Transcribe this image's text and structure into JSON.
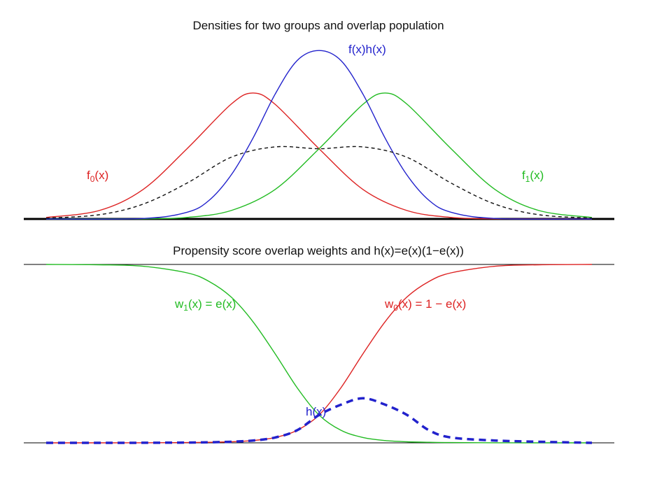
{
  "chart_data": [
    {
      "type": "line",
      "title": "Densities for two groups and overlap population",
      "xlabel": "",
      "ylabel": "",
      "x_range": [
        -3.1,
        3.1
      ],
      "y_range": [
        0,
        1.3
      ],
      "grid": false,
      "axes_visible": false,
      "baseline": true,
      "series": [
        {
          "key": "f0",
          "label_main": "f",
          "label_sub": "0",
          "label_tail": "(x)",
          "color": "#dd2222",
          "style": "solid",
          "x": [
            -3.1,
            -2.5,
            -2.0,
            -1.5,
            -1.0,
            -0.75,
            -0.5,
            0.0,
            0.5,
            1.0,
            1.5,
            2.0,
            2.5,
            3.1
          ],
          "y": [
            0.009,
            0.05,
            0.175,
            0.417,
            0.681,
            0.748,
            0.681,
            0.417,
            0.175,
            0.05,
            0.009,
            0.001,
            0.0001,
            0.0
          ]
        },
        {
          "key": "f1",
          "label_main": "f",
          "label_sub": "1",
          "label_tail": "(x)",
          "color": "#22bb22",
          "style": "solid",
          "x": [
            -3.1,
            -2.5,
            -2.0,
            -1.5,
            -1.0,
            -0.5,
            0.0,
            0.5,
            0.75,
            1.0,
            1.5,
            2.0,
            2.5,
            3.1
          ],
          "y": [
            0.0,
            0.0001,
            0.001,
            0.009,
            0.05,
            0.175,
            0.417,
            0.681,
            0.748,
            0.681,
            0.417,
            0.175,
            0.05,
            0.009
          ]
        },
        {
          "key": "fh",
          "label_main": "f(x)h(x)",
          "label_sub": "",
          "label_tail": "",
          "color": "#2222cc",
          "style": "solid",
          "x": [
            -3.1,
            -2.0,
            -1.5,
            -1.25,
            -1.0,
            -0.75,
            -0.5,
            -0.25,
            0.0,
            0.25,
            0.5,
            0.75,
            1.0,
            1.25,
            1.5,
            2.0,
            3.1
          ],
          "y": [
            0.0,
            0.003,
            0.04,
            0.11,
            0.26,
            0.48,
            0.74,
            0.94,
            1.0,
            0.94,
            0.74,
            0.48,
            0.26,
            0.11,
            0.04,
            0.003,
            0.0
          ]
        },
        {
          "key": "fmix",
          "label_main": "",
          "label_sub": "",
          "label_tail": "",
          "color": "#111111",
          "style": "dashed",
          "x": [
            -3.1,
            -2.5,
            -2.0,
            -1.5,
            -1.0,
            -0.5,
            0.0,
            0.5,
            1.0,
            1.5,
            2.0,
            2.5,
            3.1
          ],
          "y": [
            0.005,
            0.025,
            0.088,
            0.213,
            0.366,
            0.428,
            0.417,
            0.428,
            0.366,
            0.213,
            0.088,
            0.025,
            0.005
          ]
        }
      ]
    },
    {
      "type": "line",
      "title": "Propensity score overlap weights and h(x)=e(x)(1−e(x))",
      "xlabel": "",
      "ylabel": "",
      "x_range": [
        -3.1,
        3.1
      ],
      "y_range": [
        0,
        1
      ],
      "grid": false,
      "axes_visible": false,
      "baseline": true,
      "topline": true,
      "series": [
        {
          "key": "w1",
          "label_main": "w",
          "label_sub": "1",
          "label_tail": "(x) = e(x)",
          "color": "#22bb22",
          "style": "solid",
          "x": [
            -3.1,
            -2.5,
            -2.0,
            -1.5,
            -1.25,
            -1.0,
            -0.75,
            -0.5,
            -0.25,
            0.0,
            0.25,
            0.5,
            0.75,
            1.0,
            1.25,
            1.5,
            2.0,
            2.5,
            3.1
          ],
          "y": [
            1.0,
            0.998,
            0.99,
            0.953,
            0.905,
            0.818,
            0.679,
            0.5,
            0.31,
            0.156,
            0.07,
            0.03,
            0.013,
            0.006,
            0.003,
            0.0015,
            0.0003,
            0.0001,
            0.0
          ]
        },
        {
          "key": "w0",
          "label_main": "w",
          "label_sub": "0",
          "label_tail": "(x) = 1 − e(x)",
          "color": "#dd2222",
          "style": "solid",
          "x": [
            -3.1,
            -2.5,
            -2.0,
            -1.5,
            -1.25,
            -1.0,
            -0.75,
            -0.5,
            -0.25,
            0.0,
            0.25,
            0.5,
            0.75,
            1.0,
            1.25,
            1.5,
            2.0,
            2.5,
            3.1
          ],
          "y": [
            0.0,
            0.0001,
            0.0003,
            0.0015,
            0.003,
            0.006,
            0.013,
            0.03,
            0.07,
            0.156,
            0.31,
            0.5,
            0.679,
            0.818,
            0.905,
            0.953,
            0.99,
            0.998,
            1.0
          ]
        },
        {
          "key": "h",
          "label_main": "h(x)",
          "label_sub": "",
          "label_tail": "",
          "color": "#2222cc",
          "style": "dashed-thick",
          "x": [
            -3.1,
            -2.5,
            -2.0,
            -1.5,
            -1.25,
            -1.0,
            -0.75,
            -0.5,
            -0.25,
            0.0,
            0.25,
            0.5,
            0.75,
            1.0,
            1.25,
            1.5,
            2.0,
            2.5,
            3.1
          ],
          "y": [
            0.0,
            0.0001,
            0.0003,
            0.0015,
            0.003,
            0.006,
            0.013,
            0.03,
            0.07,
            0.156,
            0.214,
            0.25,
            0.214,
            0.156,
            0.07,
            0.03,
            0.013,
            0.006,
            0.0
          ]
        }
      ]
    }
  ]
}
